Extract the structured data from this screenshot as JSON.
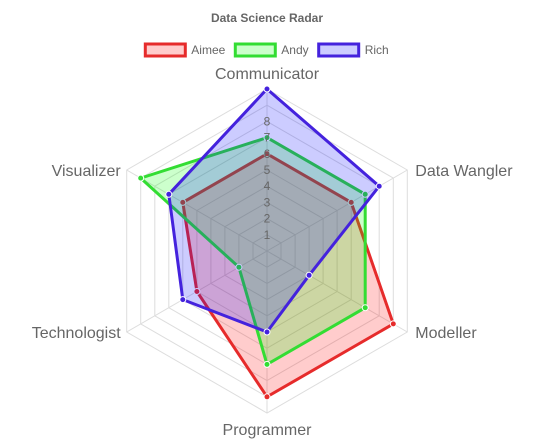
{
  "chart_data": {
    "type": "radar",
    "title": "Data Science Radar",
    "categories": [
      "Communicator",
      "Data Wangler",
      "Modeller",
      "Programmer",
      "Technologist",
      "Visualizer"
    ],
    "series": [
      {
        "name": "Aimee",
        "values": [
          6,
          6,
          9,
          9,
          5,
          6
        ],
        "color": "#e62b2b",
        "fill": "rgba(255,0,0,0.2)"
      },
      {
        "name": "Andy",
        "values": [
          7,
          7,
          7,
          7,
          2,
          9
        ],
        "color": "#33dd33",
        "fill": "rgba(0,255,0,0.2)"
      },
      {
        "name": "Rich",
        "values": [
          10,
          8,
          3,
          5,
          6,
          7
        ],
        "color": "#4422dd",
        "fill": "rgba(0,0,255,0.2)"
      }
    ],
    "r_ticks": [
      "1",
      "2",
      "3",
      "4",
      "5",
      "6",
      "7",
      "8"
    ],
    "r_range": [
      0,
      10
    ],
    "grid": true,
    "legend_position": "top",
    "grid_color": "#dddddd",
    "text_color": "#666666"
  }
}
